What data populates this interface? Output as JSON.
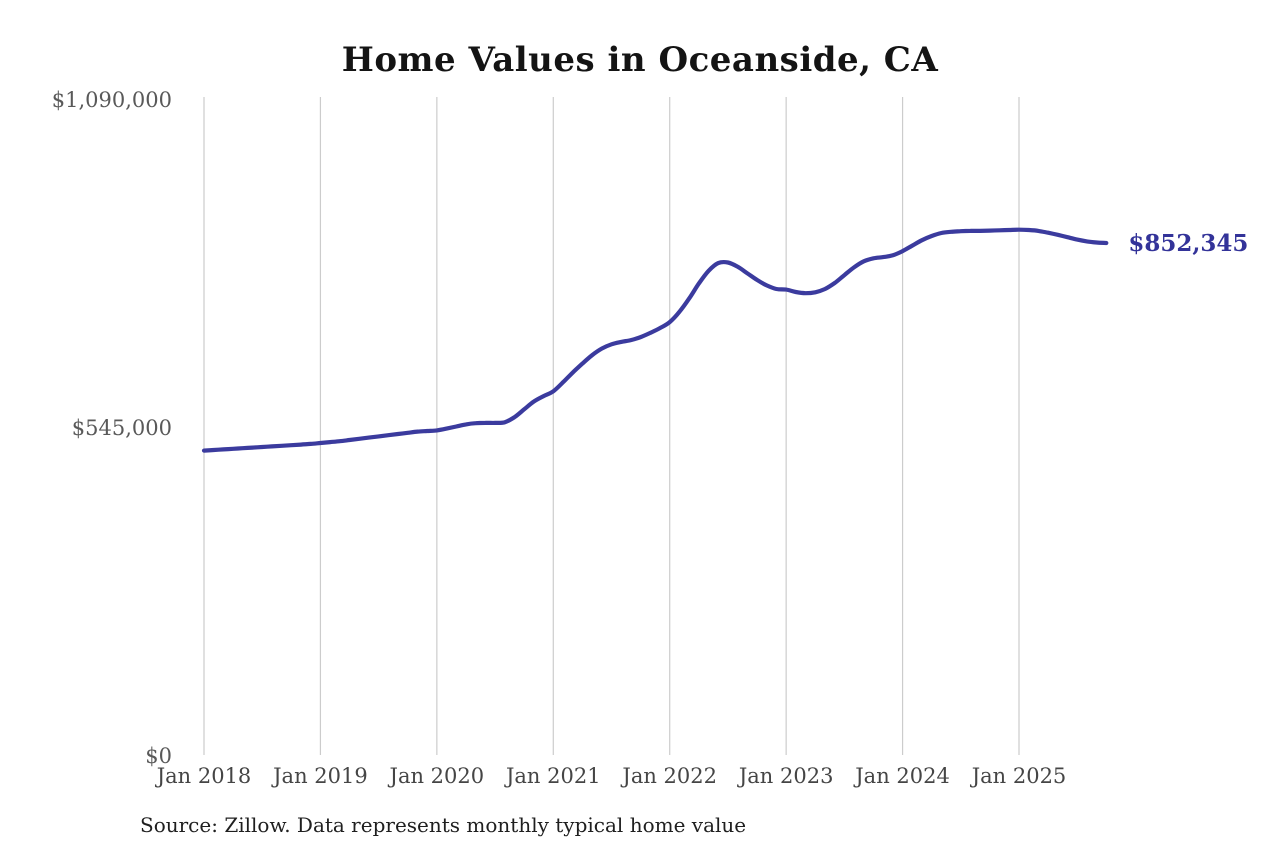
{
  "header": {
    "title": "Home Values in Oceanside, CA"
  },
  "footer": {
    "source_note": "Source: Zillow. Data represents monthly typical home value"
  },
  "chart_data": {
    "type": "line",
    "title": "Home Values in Oceanside, CA",
    "end_label": "$852,345",
    "end_value": 852345,
    "x_tick_labels": [
      "Jan 2018",
      "Jan 2019",
      "Jan 2020",
      "Jan 2021",
      "Jan 2022",
      "Jan 2023",
      "Jan 2024",
      "Jan 2025"
    ],
    "y_ticks": [
      {
        "label": "$0",
        "value": 0
      },
      {
        "label": "$545,000",
        "value": 545000
      },
      {
        "label": "$1,090,000",
        "value": 1090000
      }
    ],
    "ylim": [
      0,
      1090000
    ],
    "grid": "vertical-only",
    "legend": "none",
    "interval": "monthly",
    "series": [
      {
        "name": "Typical home value",
        "months": [
          "2018-01",
          "2018-02",
          "2018-03",
          "2018-04",
          "2018-05",
          "2018-06",
          "2018-07",
          "2018-08",
          "2018-09",
          "2018-10",
          "2018-11",
          "2018-12",
          "2019-01",
          "2019-02",
          "2019-03",
          "2019-04",
          "2019-05",
          "2019-06",
          "2019-07",
          "2019-08",
          "2019-09",
          "2019-10",
          "2019-11",
          "2019-12",
          "2020-01",
          "2020-02",
          "2020-03",
          "2020-04",
          "2020-05",
          "2020-06",
          "2020-07",
          "2020-08",
          "2020-09",
          "2020-10",
          "2020-11",
          "2020-12",
          "2021-01",
          "2021-02",
          "2021-03",
          "2021-04",
          "2021-05",
          "2021-06",
          "2021-07",
          "2021-08",
          "2021-09",
          "2021-10",
          "2021-11",
          "2021-12",
          "2022-01",
          "2022-02",
          "2022-03",
          "2022-04",
          "2022-05",
          "2022-06",
          "2022-07",
          "2022-08",
          "2022-09",
          "2022-10",
          "2022-11",
          "2022-12",
          "2023-01",
          "2023-02",
          "2023-03",
          "2023-04",
          "2023-05",
          "2023-06",
          "2023-07",
          "2023-08",
          "2023-09",
          "2023-10",
          "2023-11",
          "2023-12",
          "2024-01",
          "2024-02",
          "2024-03",
          "2024-04",
          "2024-05",
          "2024-06",
          "2024-07",
          "2024-08",
          "2024-09",
          "2024-10",
          "2024-11",
          "2024-12",
          "2025-01",
          "2025-02",
          "2025-03",
          "2025-04",
          "2025-05",
          "2025-06",
          "2025-07",
          "2025-08",
          "2025-09",
          "2025-10"
        ],
        "values": [
          507500,
          508500,
          509500,
          510500,
          511500,
          512500,
          513500,
          514500,
          515500,
          516500,
          517500,
          518500,
          520000,
          521500,
          523000,
          525000,
          527000,
          529000,
          531000,
          533000,
          535000,
          537000,
          539000,
          540000,
          541000,
          544000,
          547500,
          551000,
          553000,
          553500,
          553500,
          554500,
          563000,
          576000,
          589000,
          598000,
          606000,
          621000,
          637000,
          652000,
          666000,
          677000,
          684000,
          688000,
          691000,
          696000,
          703000,
          711000,
          721000,
          738000,
          760000,
          785000,
          806000,
          819000,
          820000,
          813000,
          802000,
          791000,
          782000,
          776000,
          775000,
          771000,
          769000,
          770500,
          776000,
          786000,
          799000,
          812000,
          822000,
          827000,
          829000,
          832000,
          839000,
          848000,
          857000,
          864000,
          869000,
          871000,
          872000,
          872500,
          872500,
          873000,
          873500,
          874000,
          874500,
          874000,
          872500,
          869500,
          866000,
          862000,
          858000,
          855000,
          853200,
          852345
        ]
      }
    ],
    "colors": {
      "line": "#3b3b9e",
      "end_label": "#333399",
      "gridline": "#cccccc",
      "x_tick": "#454545",
      "y_tick": "#595959",
      "title": "#141414",
      "source": "#1f1f1f"
    }
  }
}
